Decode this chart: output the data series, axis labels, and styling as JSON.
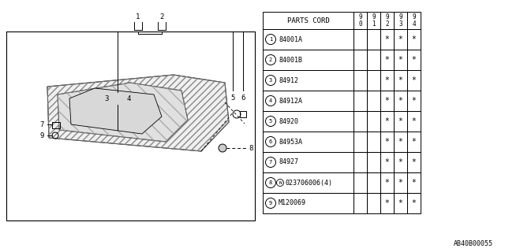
{
  "bg_color": "#ffffff",
  "table": {
    "rows": [
      {
        "num": "1",
        "code": "84001A",
        "cols": [
          "",
          "",
          "*",
          "*",
          "*"
        ]
      },
      {
        "num": "2",
        "code": "84001B",
        "cols": [
          "",
          "",
          "*",
          "*",
          "*"
        ]
      },
      {
        "num": "3",
        "code": "84912",
        "cols": [
          "",
          "",
          "*",
          "*",
          "*"
        ]
      },
      {
        "num": "4",
        "code": "84912A",
        "cols": [
          "",
          "",
          "*",
          "*",
          "*"
        ]
      },
      {
        "num": "5",
        "code": "84920",
        "cols": [
          "",
          "",
          "*",
          "*",
          "*"
        ]
      },
      {
        "num": "6",
        "code": "84953A",
        "cols": [
          "",
          "",
          "*",
          "*",
          "*"
        ]
      },
      {
        "num": "7",
        "code": "84927",
        "cols": [
          "",
          "",
          "*",
          "*",
          "*"
        ]
      },
      {
        "num": "8",
        "code": "N023706006(4)",
        "cols": [
          "",
          "",
          "*",
          "*",
          "*"
        ]
      },
      {
        "num": "9",
        "code": "M120069",
        "cols": [
          "",
          "",
          "*",
          "*",
          "*"
        ]
      }
    ]
  },
  "year_headers": [
    "9\n0",
    "9\n1",
    "9\n2",
    "9\n3",
    "9\n4"
  ],
  "footer_code": "AB40B00055",
  "lc": "#000000",
  "tc": "#000000"
}
